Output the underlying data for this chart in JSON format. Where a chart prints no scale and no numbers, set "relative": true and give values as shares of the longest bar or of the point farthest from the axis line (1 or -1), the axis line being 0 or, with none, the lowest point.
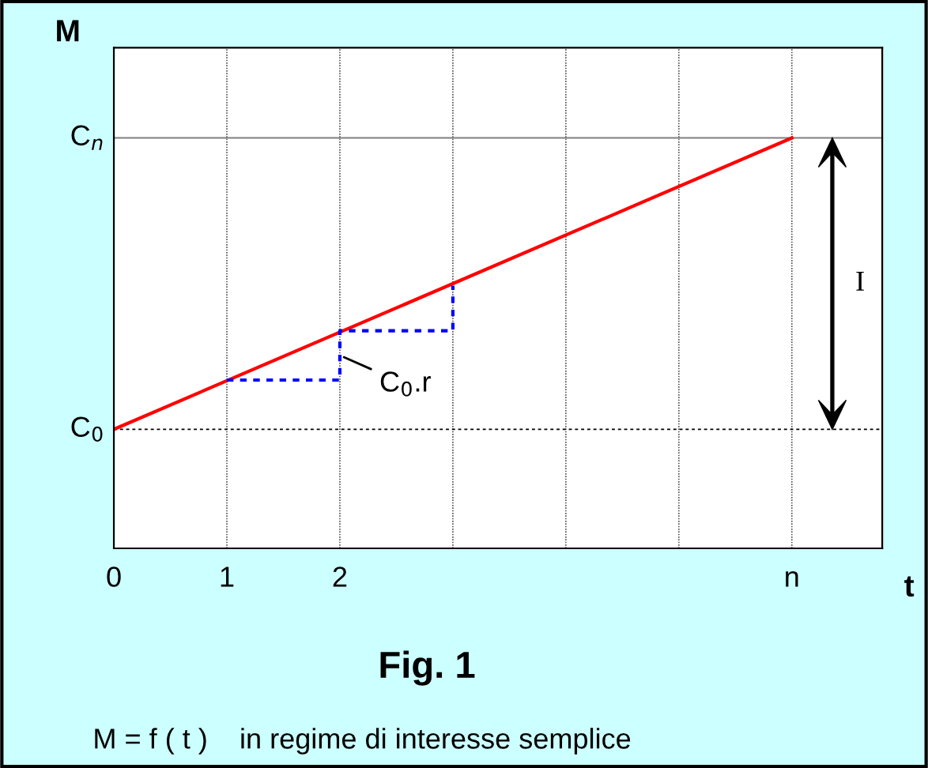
{
  "chart_data": {
    "type": "line",
    "title": "Fig. 1",
    "xlabel": "t",
    "ylabel": "M",
    "relative": true,
    "xlim": [
      0,
      6.8
    ],
    "xticks": [
      0,
      1,
      2,
      {
        "value": 3,
        "label": null
      },
      {
        "value": 4,
        "label": null
      },
      {
        "value": 5,
        "label": null
      },
      {
        "value": 6,
        "label": "n"
      }
    ],
    "grid": "x",
    "legend": false,
    "marker": "none",
    "tick_labels": "x",
    "series": [
      {
        "color": "#ff0000",
        "x": [
          0,
          6
        ],
        "values": [
          0.29,
          1
        ],
        "line_style": "solid"
      },
      {
        "color": "#0000ff",
        "x": [
          1,
          2,
          2,
          3,
          3
        ],
        "values": [
          0.41,
          0.41,
          0.53,
          0.53,
          0.64
        ],
        "line_style": "dotted"
      }
    ],
    "ref_lines": [
      {
        "axis": "y",
        "value": 0.29,
        "label": "C$_{0}$",
        "color": "#000000",
        "line_style": "dotted"
      },
      {
        "axis": "y",
        "value": 1,
        "label": "C$_{n}$",
        "color": "#808080",
        "line_style": "solid"
      }
    ],
    "annotations": [
      {
        "text": "C$_{0}$.r",
        "x": 2,
        "y": 0.47
      },
      "I",
      "M = f ( t )    in regime di interesse semplice"
    ]
  }
}
